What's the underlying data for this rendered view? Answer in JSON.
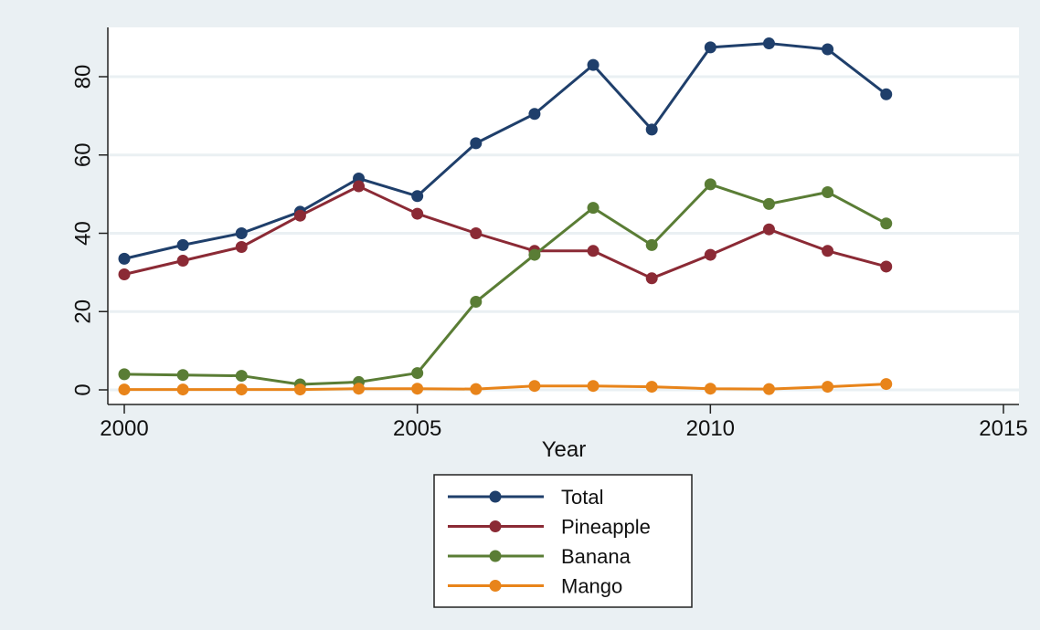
{
  "chart_data": {
    "type": "line",
    "xlabel": "Year",
    "ylabel": "",
    "xlim": [
      2000,
      2015
    ],
    "ylim": [
      0,
      90
    ],
    "x_ticks": [
      "2000",
      "2005",
      "2010",
      "2015"
    ],
    "y_ticks": [
      "0",
      "20",
      "40",
      "60",
      "80"
    ],
    "grid": true,
    "legend_position": "bottom-center",
    "x": [
      2000,
      2001,
      2002,
      2003,
      2004,
      2005,
      2006,
      2007,
      2008,
      2009,
      2010,
      2011,
      2012,
      2013
    ],
    "series": [
      {
        "name": "Total",
        "color": "#1f3f6b",
        "values": [
          33.5,
          37,
          40,
          45.5,
          54,
          49.5,
          63,
          70.5,
          83,
          66.5,
          87.5,
          88.5,
          87,
          75.5
        ]
      },
      {
        "name": "Pineapple",
        "color": "#8b2a35",
        "values": [
          29.5,
          33,
          36.5,
          44.5,
          52,
          45,
          40,
          35.5,
          35.5,
          28.5,
          34.5,
          41,
          35.5,
          31.5
        ]
      },
      {
        "name": "Banana",
        "color": "#5a7d35",
        "values": [
          4,
          3.8,
          3.6,
          1.4,
          2,
          4.3,
          22.5,
          34.5,
          46.5,
          37,
          52.5,
          47.5,
          50.5,
          42.5
        ]
      },
      {
        "name": "Mango",
        "color": "#e8841a",
        "values": [
          0.1,
          0.1,
          0.1,
          0.1,
          0.3,
          0.3,
          0.2,
          1,
          1,
          0.8,
          0.3,
          0.2,
          0.8,
          1.5
        ]
      }
    ]
  }
}
